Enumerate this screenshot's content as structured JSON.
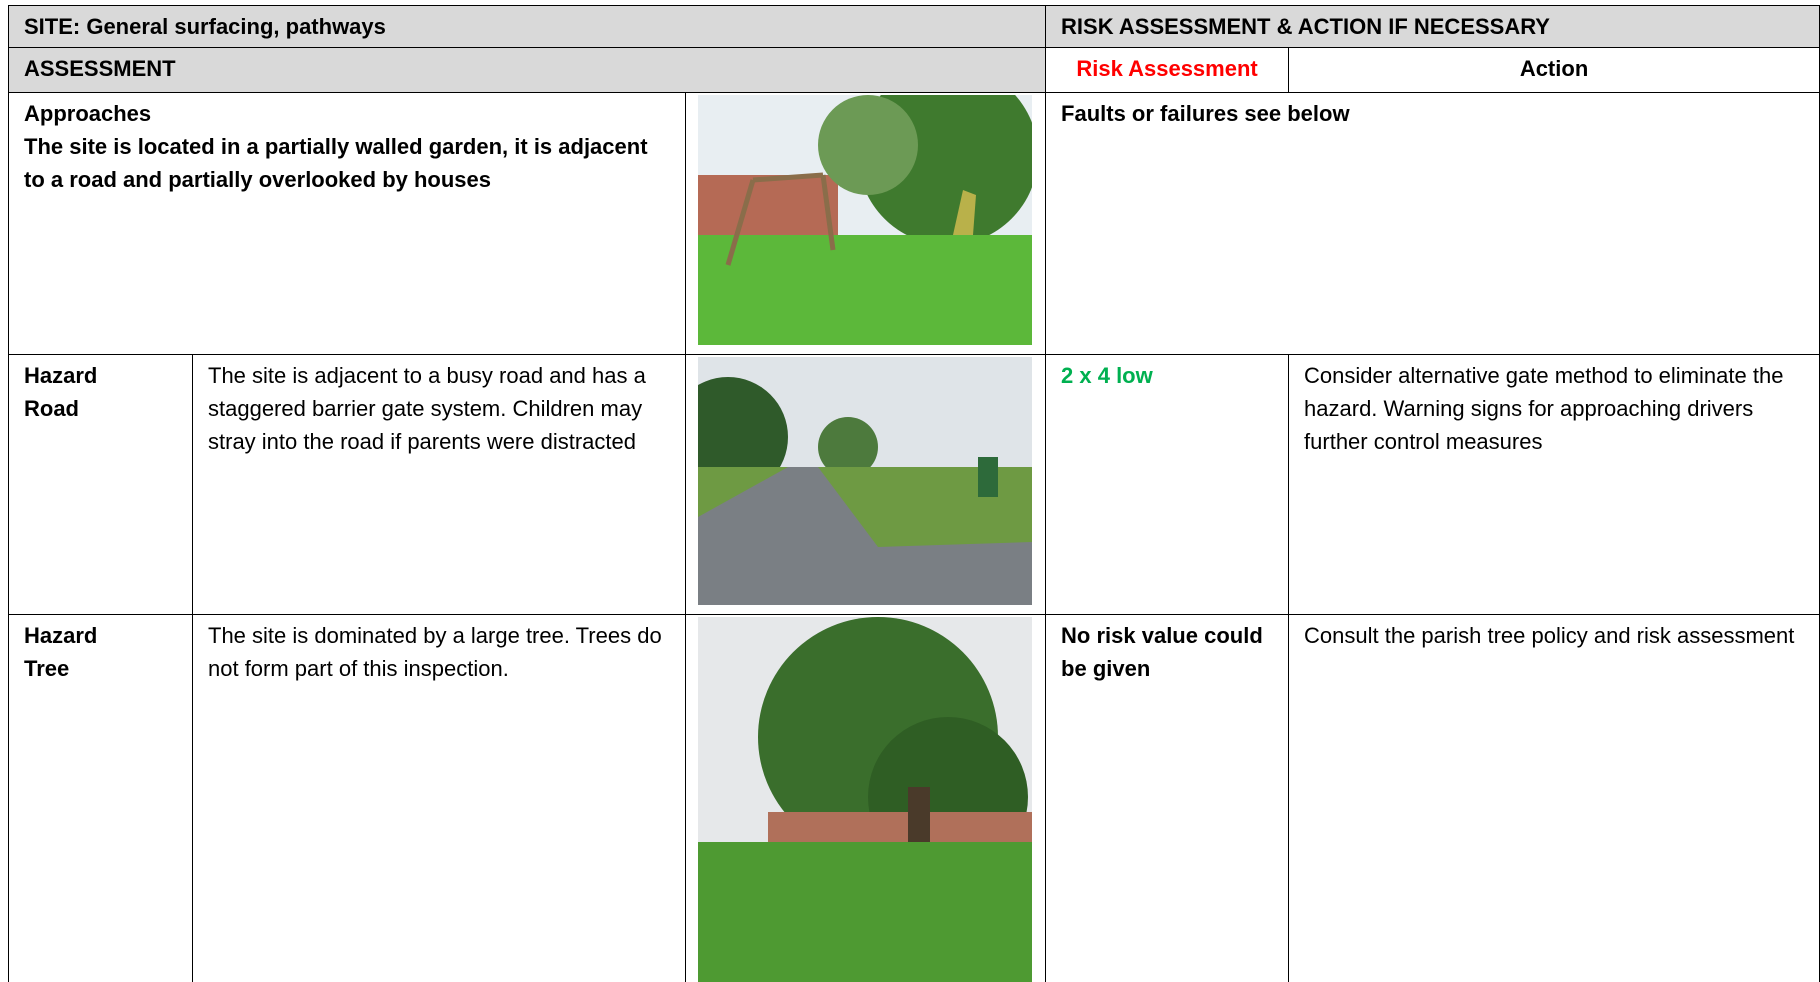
{
  "header": {
    "site": "SITE: General surfacing, pathways",
    "risk_action": "RISK ASSESSMENT & ACTION IF NECESSARY"
  },
  "subheader": {
    "assessment": "ASSESSMENT",
    "risk_assessment": "Risk Assessment",
    "action": "Action"
  },
  "rows": [
    {
      "title": "Approaches",
      "description": "The site is located in a partially walled garden, it is adjacent to a road and partially overlooked by houses",
      "risk": "Faults or failures see below"
    },
    {
      "hazard": "Hazard",
      "subject": "Road",
      "description": "The site is adjacent to a busy road and has a staggered barrier gate system. Children may stray into the road if parents were distracted",
      "risk": "2 x 4 low",
      "action": "Consider alternative gate method to eliminate the hazard. Warning signs for approaching drivers further control measures"
    },
    {
      "hazard": "Hazard",
      "subject": "Tree",
      "description": "The site is dominated by a large tree. Trees do not form part of this inspection.",
      "risk": "No risk value could be given",
      "action": "Consult the parish tree policy and risk assessment"
    }
  ]
}
